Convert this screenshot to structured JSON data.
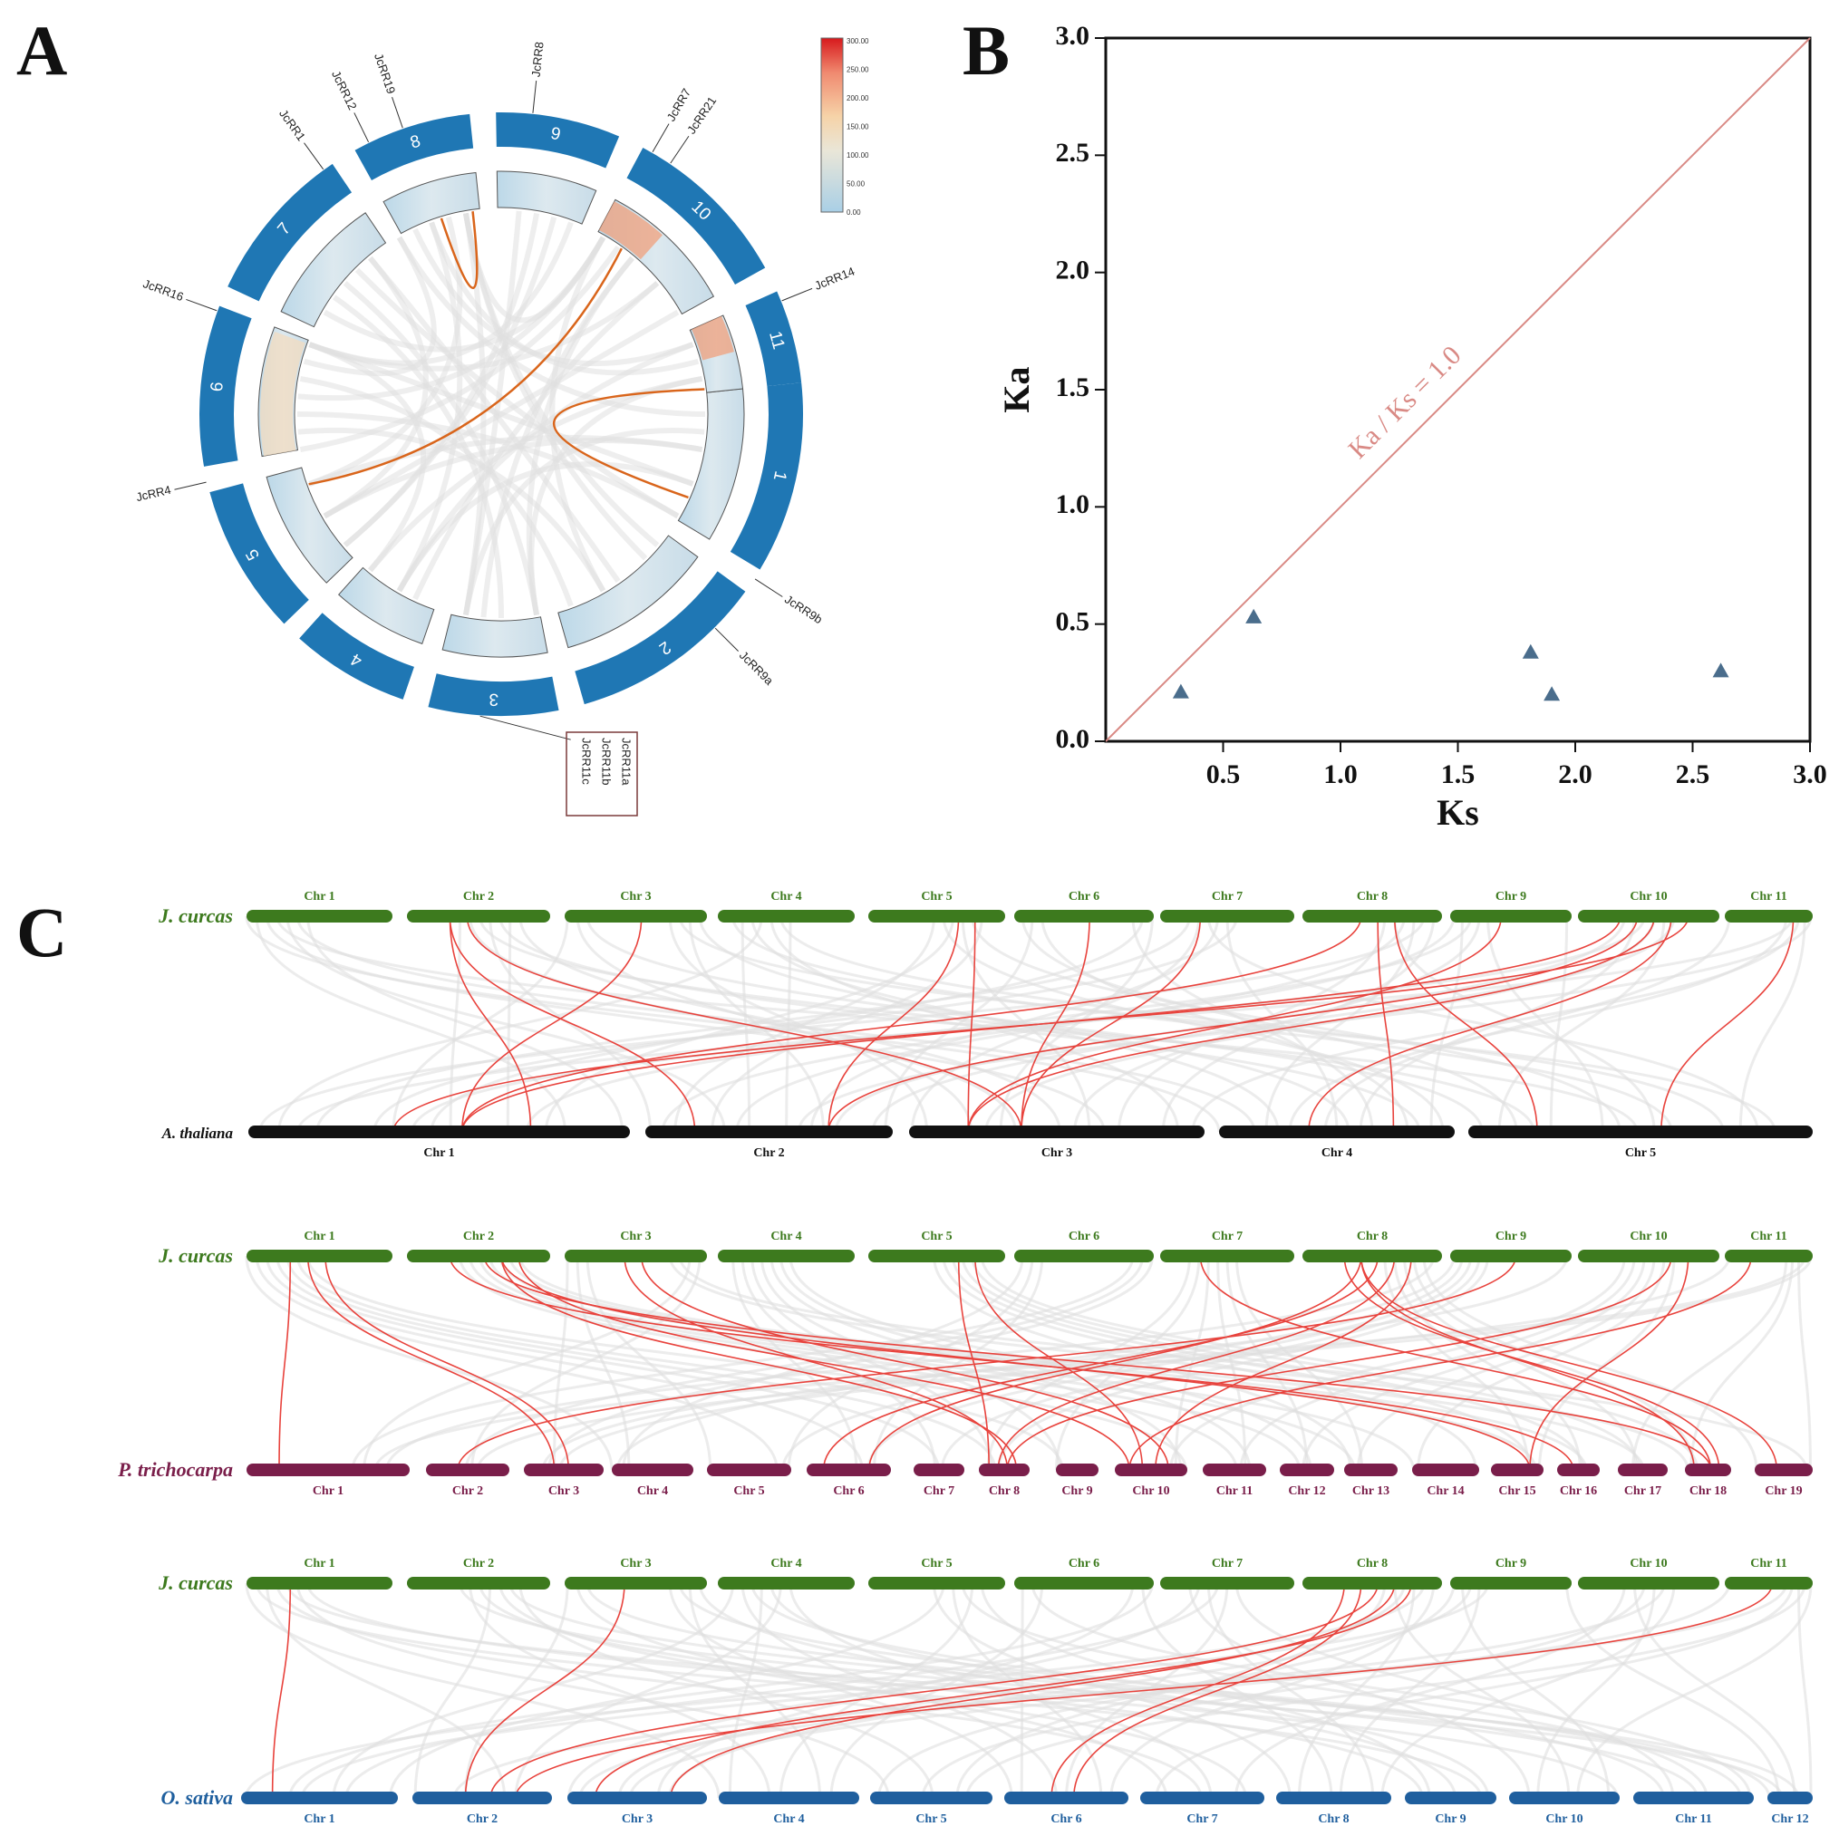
{
  "colors": {
    "chr_ring": "#1f77b4",
    "link_circos": "#d9651b",
    "background_link": "#e0e0e0",
    "synteny_red": "#e8433d",
    "diag_line": "#d98a85",
    "marker": "#4a6d8c",
    "jcurcas": "#3d7a1e",
    "athaliana": "#111111",
    "ptrichocarpa": "#7a1e4a",
    "osativa": "#1f5f9e"
  },
  "panel_a": {
    "letter": "A",
    "chromosomes": [
      "1",
      "2",
      "3",
      "4",
      "5",
      "6",
      "7",
      "8",
      "9",
      "10",
      "11"
    ],
    "genes": [
      {
        "name": "JcRR8",
        "chr": "9"
      },
      {
        "name": "JcRR19",
        "chr": "8"
      },
      {
        "name": "JcRR12",
        "chr": "8"
      },
      {
        "name": "JcRR1",
        "chr": "7"
      },
      {
        "name": "JcRR16",
        "chr": "6"
      },
      {
        "name": "JcRR4",
        "chr": "5"
      },
      {
        "name": "JcRR7",
        "chr": "10"
      },
      {
        "name": "JcRR21",
        "chr": "10"
      },
      {
        "name": "JcRR14",
        "chr": "11"
      },
      {
        "name": "JcRR9b",
        "chr": "1"
      },
      {
        "name": "JcRR9a",
        "chr": "2"
      },
      {
        "name": "JcRR11a",
        "chr": "3"
      },
      {
        "name": "JcRR11b",
        "chr": "3"
      },
      {
        "name": "JcRR11c",
        "chr": "3"
      }
    ],
    "legend": {
      "ticks": [
        "300.00",
        "250.00",
        "200.00",
        "150.00",
        "100.00",
        "50.00",
        "0.00"
      ],
      "min": 0,
      "max": 300
    }
  },
  "chart_data": [
    {
      "type": "scatter",
      "panel": "B",
      "title": "",
      "xlabel": "Ks",
      "ylabel": "Ka",
      "xlim": [
        0,
        3.0
      ],
      "ylim": [
        0,
        3.0
      ],
      "xticks": [
        "0.5",
        "1.0",
        "1.5",
        "2.0",
        "2.5",
        "3.0"
      ],
      "yticks": [
        "0.0",
        "0.5",
        "1.0",
        "1.5",
        "2.0",
        "2.5",
        "3.0"
      ],
      "reference_line_label": "Ka / Ks = 1.0",
      "marker": "triangle",
      "points": [
        {
          "x": 0.32,
          "y": 0.21
        },
        {
          "x": 0.63,
          "y": 0.53
        },
        {
          "x": 1.81,
          "y": 0.38
        },
        {
          "x": 1.9,
          "y": 0.2
        },
        {
          "x": 2.62,
          "y": 0.3
        }
      ]
    }
  ],
  "panel_c": {
    "letter": "C",
    "jcurcas_label": "J. curcas",
    "jcurcas_chrs": [
      "Chr 1",
      "Chr 2",
      "Chr 3",
      "Chr 4",
      "Chr 5",
      "Chr 6",
      "Chr 7",
      "Chr 8",
      "Chr 9",
      "Chr 10",
      "Chr 11"
    ],
    "comparisons": [
      {
        "species": "A. thaliana",
        "chrs": [
          "Chr 1",
          "Chr 2",
          "Chr 3",
          "Chr 4",
          "Chr 5"
        ]
      },
      {
        "species": "P. trichocarpa",
        "chrs": [
          "Chr 1",
          "Chr 2",
          "Chr 3",
          "Chr 4",
          "Chr 5",
          "Chr 6",
          "Chr 7",
          "Chr 8",
          "Chr 9",
          "Chr 10",
          "Chr 11",
          "Chr 12",
          "Chr 13",
          "Chr 14",
          "Chr 15",
          "Chr 16",
          "Chr 17",
          "Chr 18",
          "Chr 19"
        ]
      },
      {
        "species": "O. sativa",
        "chrs": [
          "Chr 1",
          "Chr 2",
          "Chr 3",
          "Chr 4",
          "Chr 5",
          "Chr 6",
          "Chr 7",
          "Chr 8",
          "Chr 9",
          "Chr 10",
          "Chr 11",
          "Chr 12"
        ]
      }
    ]
  }
}
